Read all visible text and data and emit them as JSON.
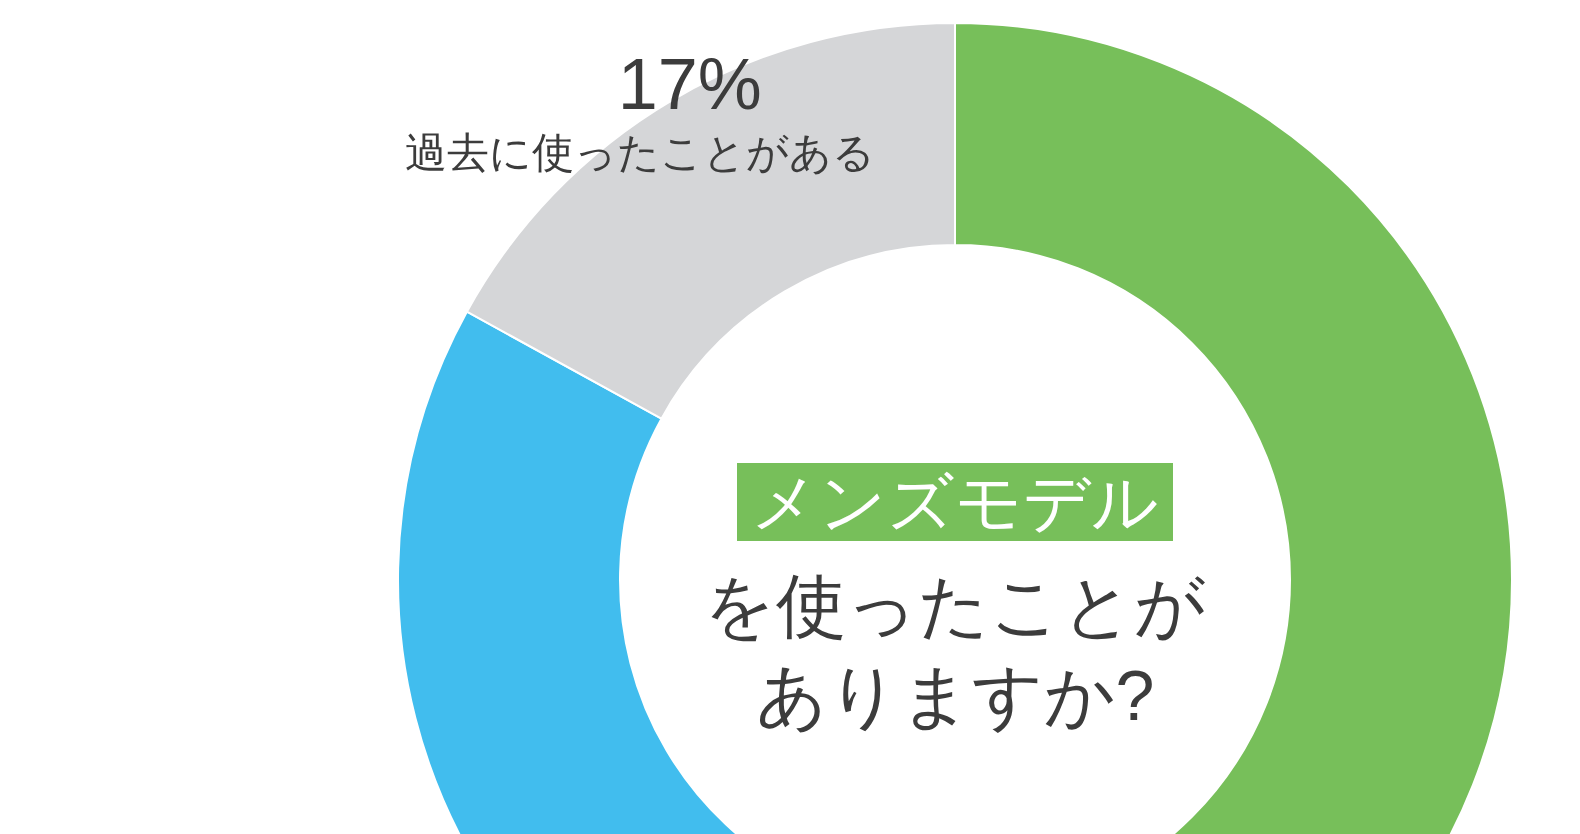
{
  "chart_data": {
    "type": "donut",
    "title": "メンズモデル",
    "subtitle": "を使ったことがありますか?",
    "categories": [
      null,
      null,
      "過去に使ったことがある"
    ],
    "values": [
      50,
      33,
      17
    ],
    "colors": [
      "#77bf5a",
      "#41bdee",
      "#d5d6d8"
    ],
    "value_labels": [
      null,
      null,
      "17%"
    ]
  }
}
